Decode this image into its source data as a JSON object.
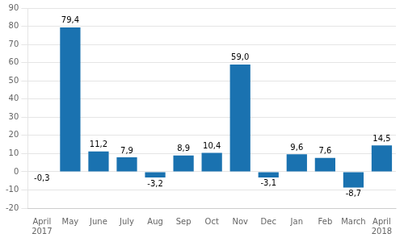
{
  "chart_data": {
    "type": "bar",
    "categories": [
      "April\n2017",
      "May",
      "June",
      "July",
      "Aug",
      "Sep",
      "Oct",
      "Nov",
      "Dec",
      "Jan",
      "Feb",
      "March",
      "April\n2018"
    ],
    "values": [
      -0.3,
      79.4,
      11.2,
      7.9,
      -3.2,
      8.9,
      10.4,
      59.0,
      -3.1,
      9.6,
      7.6,
      -8.7,
      14.5
    ],
    "value_labels": [
      "-0,3",
      "79,4",
      "11,2",
      "7,9",
      "-3,2",
      "8,9",
      "10,4",
      "59,0",
      "-3,1",
      "9,6",
      "7,6",
      "-8,7",
      "14,5"
    ],
    "color": "#1a72b0",
    "ylim": [
      -20,
      90
    ],
    "yticks": [
      -20,
      -10,
      0,
      10,
      20,
      30,
      40,
      50,
      60,
      70,
      80,
      90
    ],
    "grid": true,
    "data_labels": true
  }
}
